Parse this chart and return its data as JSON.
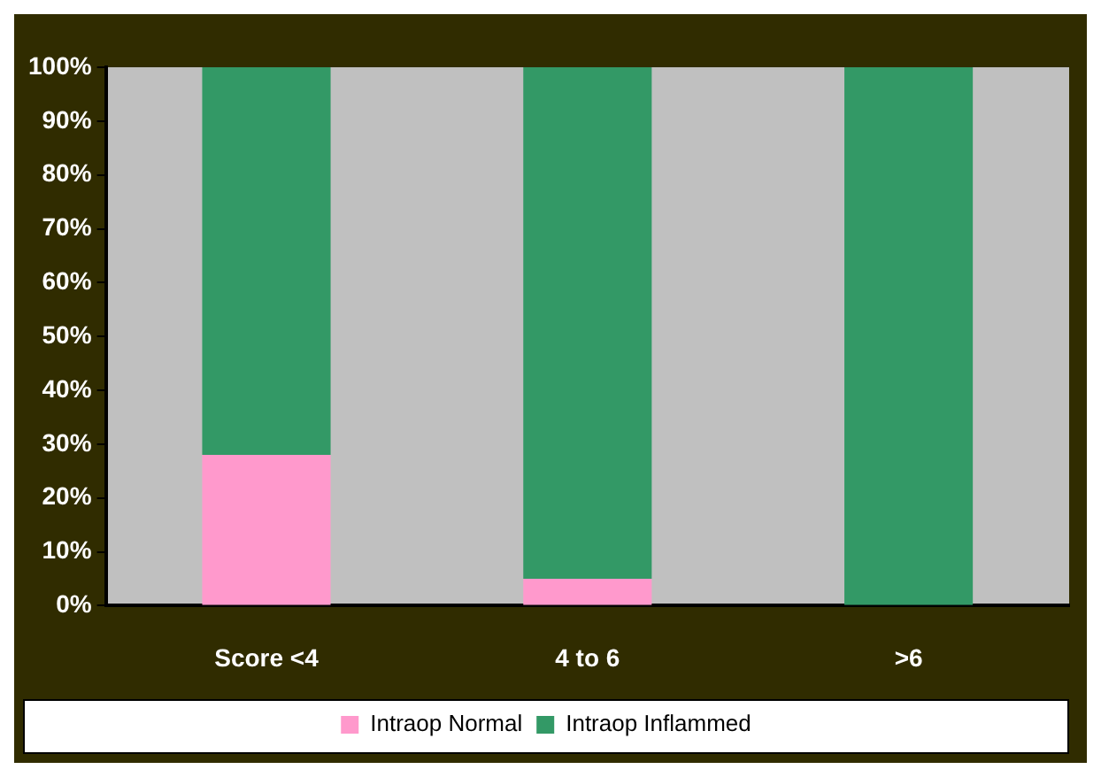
{
  "chart_data": {
    "type": "bar",
    "stacked": true,
    "categories": [
      "Score <4",
      "4 to 6",
      ">6"
    ],
    "series": [
      {
        "name": "Intraop Normal",
        "color": "#ff99cc",
        "values": [
          28,
          5,
          0
        ]
      },
      {
        "name": "Intraop Inflammed",
        "color": "#339966",
        "values": [
          72,
          95,
          100
        ]
      }
    ],
    "ylim": [
      0,
      100
    ],
    "yticks": [
      {
        "value": 0,
        "label": "0%"
      },
      {
        "value": 10,
        "label": "10%"
      },
      {
        "value": 20,
        "label": "20%"
      },
      {
        "value": 30,
        "label": "30%"
      },
      {
        "value": 40,
        "label": "40%"
      },
      {
        "value": 50,
        "label": "50%"
      },
      {
        "value": 60,
        "label": "60%"
      },
      {
        "value": 70,
        "label": "70%"
      },
      {
        "value": 80,
        "label": "80%"
      },
      {
        "value": 90,
        "label": "90%"
      },
      {
        "value": 100,
        "label": "100%"
      }
    ],
    "grid": false,
    "legend": "bottom"
  }
}
